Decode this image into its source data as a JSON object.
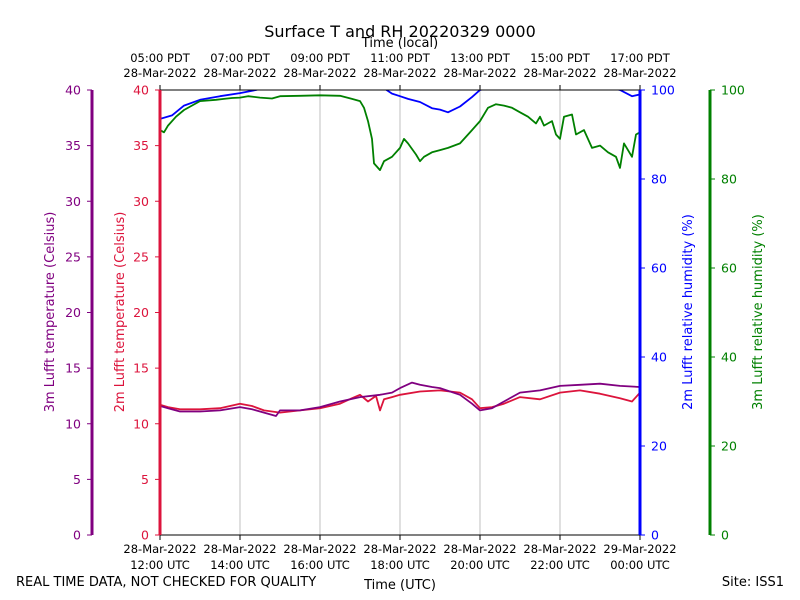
{
  "chart_data": {
    "type": "line",
    "title": "Surface T and RH 20220329 0000",
    "x_label_bottom": "Time (UTC)",
    "x_label_top": "Time (local)",
    "x_range_hours": [
      12,
      24
    ],
    "bottom_ticks": [
      {
        "h": 12,
        "date": "28-Mar-2022",
        "time": "12:00 UTC"
      },
      {
        "h": 14,
        "date": "28-Mar-2022",
        "time": "14:00 UTC"
      },
      {
        "h": 16,
        "date": "28-Mar-2022",
        "time": "16:00 UTC"
      },
      {
        "h": 18,
        "date": "28-Mar-2022",
        "time": "18:00 UTC"
      },
      {
        "h": 20,
        "date": "28-Mar-2022",
        "time": "20:00 UTC"
      },
      {
        "h": 22,
        "date": "28-Mar-2022",
        "time": "22:00 UTC"
      },
      {
        "h": 24,
        "date": "29-Mar-2022",
        "time": "00:00 UTC"
      }
    ],
    "top_ticks": [
      {
        "h": 12,
        "time": "05:00 PDT",
        "date": "28-Mar-2022"
      },
      {
        "h": 14,
        "time": "07:00 PDT",
        "date": "28-Mar-2022"
      },
      {
        "h": 16,
        "time": "09:00 PDT",
        "date": "28-Mar-2022"
      },
      {
        "h": 18,
        "time": "11:00 PDT",
        "date": "28-Mar-2022"
      },
      {
        "h": 20,
        "time": "13:00 PDT",
        "date": "28-Mar-2022"
      },
      {
        "h": 22,
        "time": "15:00 PDT",
        "date": "28-Mar-2022"
      },
      {
        "h": 24,
        "time": "17:00 PDT",
        "date": "28-Mar-2022"
      }
    ],
    "axes": {
      "temp3m": {
        "label": "3m Lufft temperature (Celsius)",
        "range": [
          0,
          40
        ],
        "ticks": [
          0,
          5,
          10,
          15,
          20,
          25,
          30,
          35,
          40
        ],
        "color": "#800080"
      },
      "temp2m": {
        "label": "2m Lufft temperature (Celsius)",
        "range": [
          0,
          40
        ],
        "ticks": [
          0,
          5,
          10,
          15,
          20,
          25,
          30,
          35,
          40
        ],
        "color": "#dc143c"
      },
      "rh2m": {
        "label": "2m Lufft relative humidity (%)",
        "range": [
          0,
          100
        ],
        "ticks": [
          0,
          20,
          40,
          60,
          80,
          100
        ],
        "color": "#0000ff"
      },
      "rh3m": {
        "label": "3m Lufft relative humidity (%)",
        "range": [
          0,
          100
        ],
        "ticks": [
          0,
          20,
          40,
          60,
          80,
          100
        ],
        "color": "#008000"
      }
    },
    "series": [
      {
        "name": "2m Lufft relative humidity",
        "axis": "rh2m",
        "color": "#0000ff",
        "x": [
          12.0,
          12.3,
          12.6,
          13.0,
          13.5,
          14.0,
          14.4,
          14.6,
          15.2,
          16.0,
          17.0,
          17.5,
          17.8,
          18.0,
          18.2,
          18.5,
          18.8,
          19.0,
          19.2,
          19.5,
          19.8,
          20.0,
          20.5,
          21.0,
          21.5,
          22.0,
          22.5,
          23.0,
          23.5,
          23.8,
          24.0
        ],
        "values": [
          93.5,
          94.3,
          96.5,
          97.8,
          98.6,
          99.3,
          100.0,
          100.5,
          101.0,
          101.0,
          101.0,
          101.0,
          99.2,
          98.6,
          98.0,
          97.3,
          95.9,
          95.6,
          95.0,
          96.3,
          98.4,
          100.0,
          101.0,
          101.0,
          101.0,
          101.0,
          101.0,
          101.0,
          100.0,
          98.6,
          99.0
        ]
      },
      {
        "name": "3m Lufft relative humidity",
        "axis": "rh3m",
        "color": "#008000",
        "x": [
          12.0,
          12.1,
          12.2,
          12.4,
          12.6,
          13.0,
          13.4,
          13.6,
          13.8,
          14.0,
          14.2,
          14.5,
          14.8,
          15.0,
          15.5,
          16.0,
          16.5,
          16.8,
          17.0,
          17.1,
          17.2,
          17.3,
          17.35,
          17.5,
          17.6,
          17.8,
          18.0,
          18.1,
          18.2,
          18.4,
          18.5,
          18.6,
          18.8,
          19.0,
          19.2,
          19.5,
          19.8,
          20.0,
          20.2,
          20.4,
          20.6,
          20.8,
          21.0,
          21.2,
          21.4,
          21.5,
          21.6,
          21.8,
          21.9,
          22.0,
          22.1,
          22.3,
          22.4,
          22.6,
          22.8,
          23.0,
          23.2,
          23.4,
          23.5,
          23.6,
          23.8,
          23.9,
          24.0
        ],
        "values": [
          91.0,
          90.5,
          92.0,
          94.0,
          95.5,
          97.5,
          97.8,
          98.0,
          98.2,
          98.3,
          98.6,
          98.3,
          98.1,
          98.6,
          98.7,
          98.8,
          98.7,
          98.0,
          97.5,
          96.0,
          93.0,
          89.0,
          83.5,
          82.0,
          84.0,
          85.0,
          87.0,
          89.0,
          88.0,
          85.5,
          84.0,
          85.0,
          86.0,
          86.5,
          87.0,
          88.0,
          91.0,
          93.0,
          96.0,
          96.8,
          96.5,
          96.0,
          95.0,
          94.0,
          92.5,
          94.0,
          92.0,
          93.0,
          90.0,
          89.0,
          94.0,
          94.5,
          90.0,
          91.0,
          87.0,
          87.5,
          86.0,
          85.0,
          82.5,
          88.0,
          85.0,
          90.0,
          90.5
        ]
      },
      {
        "name": "2m Lufft temperature",
        "axis": "temp2m",
        "color": "#dc143c",
        "x": [
          12.0,
          12.2,
          12.5,
          13.0,
          13.5,
          14.0,
          14.3,
          14.6,
          15.0,
          15.5,
          16.0,
          16.5,
          16.8,
          17.0,
          17.2,
          17.4,
          17.5,
          17.6,
          17.8,
          18.0,
          18.5,
          19.0,
          19.5,
          19.8,
          20.0,
          20.3,
          20.6,
          21.0,
          21.5,
          22.0,
          22.5,
          23.0,
          23.5,
          23.8,
          24.0
        ],
        "values": [
          11.7,
          11.5,
          11.3,
          11.3,
          11.4,
          11.8,
          11.6,
          11.2,
          11.0,
          11.2,
          11.4,
          11.8,
          12.3,
          12.6,
          12.0,
          12.5,
          11.2,
          12.2,
          12.4,
          12.6,
          12.9,
          13.0,
          12.8,
          12.2,
          11.4,
          11.5,
          11.8,
          12.4,
          12.2,
          12.8,
          13.0,
          12.7,
          12.3,
          12.0,
          12.8
        ]
      },
      {
        "name": "3m Lufft temperature",
        "axis": "temp3m",
        "color": "#800080",
        "x": [
          12.0,
          12.2,
          12.5,
          13.0,
          13.5,
          14.0,
          14.3,
          14.6,
          14.9,
          15.0,
          15.5,
          16.0,
          16.5,
          17.0,
          17.5,
          17.8,
          18.0,
          18.3,
          18.5,
          18.8,
          19.0,
          19.5,
          19.8,
          20.0,
          20.3,
          20.6,
          21.0,
          21.5,
          22.0,
          22.5,
          23.0,
          23.5,
          24.0
        ],
        "values": [
          11.6,
          11.4,
          11.1,
          11.1,
          11.2,
          11.5,
          11.3,
          11.0,
          10.7,
          11.2,
          11.2,
          11.5,
          12.0,
          12.4,
          12.6,
          12.8,
          13.2,
          13.7,
          13.5,
          13.3,
          13.2,
          12.6,
          11.8,
          11.2,
          11.4,
          12.0,
          12.8,
          13.0,
          13.4,
          13.5,
          13.6,
          13.4,
          13.3
        ]
      }
    ]
  },
  "footer": {
    "left": "REAL TIME DATA, NOT CHECKED FOR QUALITY",
    "right": "Site: ISS1"
  }
}
